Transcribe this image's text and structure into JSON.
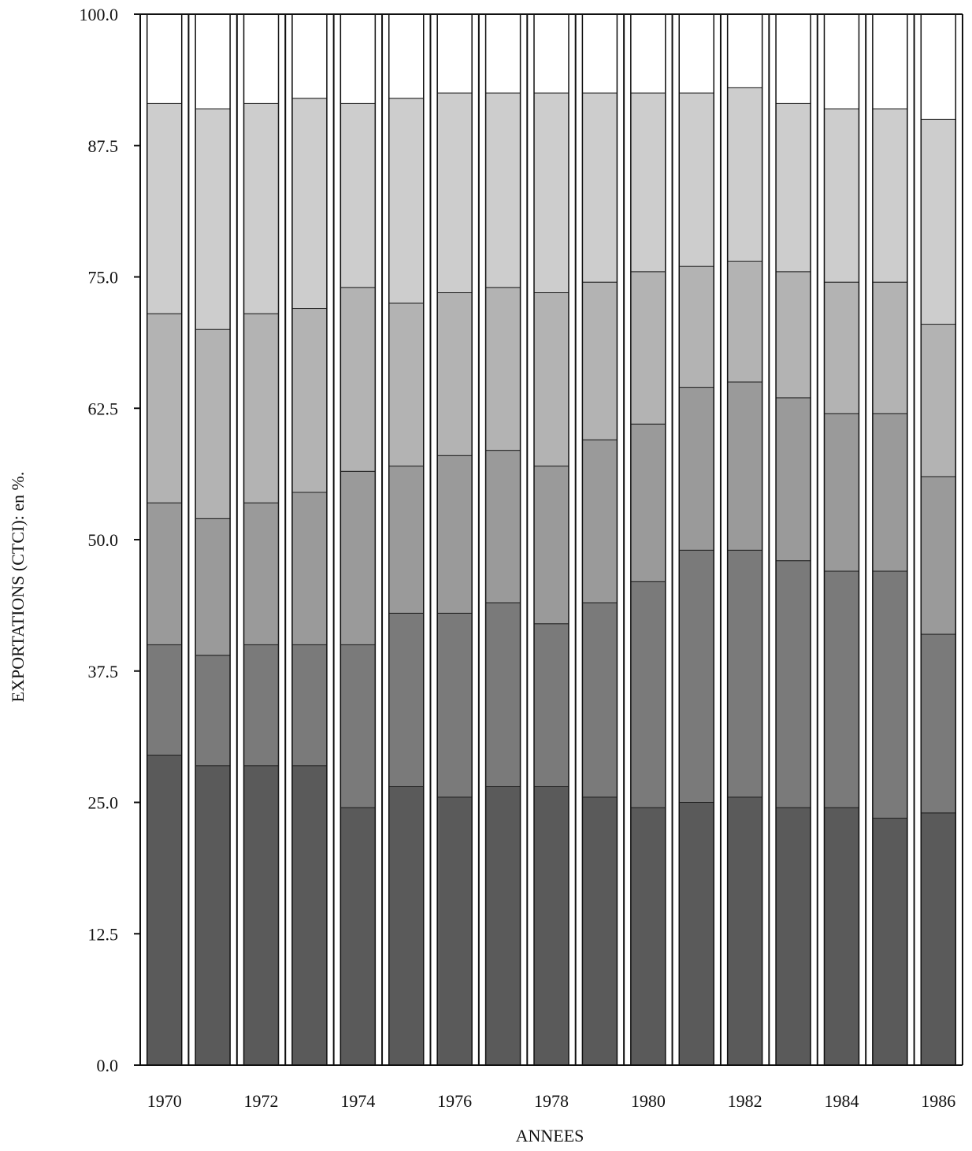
{
  "chart_data": {
    "type": "bar",
    "stacked": true,
    "title": "",
    "xlabel": "ANNEES",
    "ylabel": "EXPORTATIONS (CTCI): en %.",
    "ylim": [
      0,
      100
    ],
    "yticks": [
      "0.0",
      "12.5",
      "25.0",
      "37.5",
      "50.0",
      "62.5",
      "75.0",
      "87.5",
      "100.0"
    ],
    "categories": [
      "1970",
      "1971",
      "1972",
      "1973",
      "1974",
      "1975",
      "1976",
      "1977",
      "1978",
      "1979",
      "1980",
      "1981",
      "1982",
      "1983",
      "1984",
      "1985",
      "1986"
    ],
    "xtick_labels": [
      "1970",
      "",
      "1972",
      "",
      "1974",
      "",
      "1976",
      "",
      "1978",
      "",
      "1980",
      "",
      "1982",
      "",
      "1984",
      "",
      "1986"
    ],
    "grid": false,
    "legend": "none",
    "series": [
      {
        "values": [
          29.5,
          28.5,
          28.5,
          28.5,
          24.5,
          26.5,
          25.5,
          26.5,
          26.5,
          25.5,
          24.5,
          25.0,
          25.5,
          24.5,
          24.5,
          23.5,
          24.0
        ],
        "color": "#5a5a5a"
      },
      {
        "values": [
          10.5,
          10.5,
          11.5,
          11.5,
          15.5,
          16.5,
          17.5,
          17.5,
          15.5,
          18.5,
          21.5,
          24.0,
          23.5,
          23.5,
          22.5,
          23.5,
          17.0
        ],
        "color": "#7a7a7a"
      },
      {
        "values": [
          13.5,
          13.0,
          13.5,
          14.5,
          16.5,
          14.0,
          15.0,
          14.5,
          15.0,
          15.5,
          15.0,
          15.5,
          16.0,
          15.5,
          15.0,
          15.0,
          15.0
        ],
        "color": "#9a9a9a"
      },
      {
        "values": [
          18.0,
          18.0,
          18.0,
          17.5,
          17.5,
          15.5,
          15.5,
          15.5,
          16.5,
          15.0,
          14.5,
          11.5,
          11.5,
          12.0,
          12.5,
          12.5,
          14.5
        ],
        "color": "#b3b3b3"
      },
      {
        "values": [
          20.0,
          21.0,
          20.0,
          20.0,
          17.5,
          19.5,
          19.0,
          18.5,
          19.0,
          18.0,
          17.0,
          16.5,
          16.5,
          16.0,
          16.5,
          16.5,
          19.5
        ],
        "color": "#cdcdcd"
      },
      {
        "values": [
          8.5,
          9.0,
          8.5,
          8.0,
          8.5,
          8.0,
          7.5,
          7.5,
          7.5,
          7.5,
          7.5,
          7.5,
          7.0,
          8.5,
          9.0,
          9.0,
          10.0
        ],
        "color": "#ffffff"
      }
    ]
  }
}
